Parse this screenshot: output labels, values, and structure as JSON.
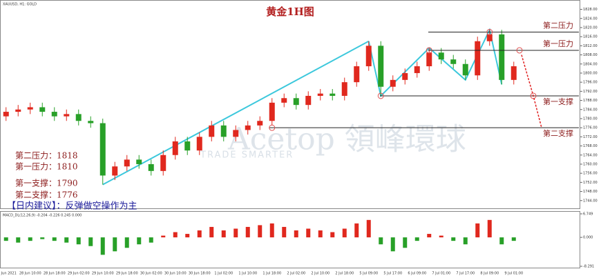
{
  "chart_data": {
    "type": "candlestick",
    "title": "黄金1H图",
    "symbol": "XAUUSD, H1: GOLD",
    "up_color": "#e0281e",
    "down_color": "#28a028",
    "categories": [
      "25 Jun 2021",
      null,
      "28 Jun 10:00",
      null,
      "28 Jun 18:00",
      null,
      "29 Jun 02:00",
      null,
      "29 Jun 10:00",
      null,
      "29 Jun 18:00",
      null,
      "30 Jun 02:00",
      null,
      "30 Jun 10:00",
      null,
      "30 Jun 18:00",
      null,
      "1 Jul 02:00",
      null,
      "1 Jul 10:00",
      null,
      "1 Jul 18:00",
      null,
      "2 Jul 02:00",
      null,
      "2 Jul 10:00",
      null,
      "2 Jul 18:00",
      null,
      "5 Jul 09:00",
      null,
      "5 Jul 17:00",
      null,
      "6 Jul 09:00",
      null,
      "7 Jul 01:00",
      null,
      "7 Jul 17:00",
      null,
      "8 Jul 09:00",
      null,
      "9 Jul 01:00"
    ],
    "open": [
      1781,
      1783,
      1784,
      1785,
      1783,
      1781,
      1782,
      1779,
      1778,
      1755,
      1759,
      1762,
      1760,
      1757,
      1764,
      1770,
      1766,
      1772,
      1777,
      1772,
      1775,
      1777,
      1779,
      1787,
      1789,
      1786,
      1790,
      1791,
      1790,
      1796,
      1803,
      1812,
      1794,
      1797,
      1800,
      1803,
      1809,
      1806,
      1804,
      1799,
      1814,
      1817,
      1797
    ],
    "high": [
      1785,
      1786,
      1787,
      1787,
      1785,
      1784,
      1784,
      1781,
      1780,
      1761,
      1764,
      1764,
      1762,
      1766,
      1772,
      1772,
      1774,
      1779,
      1779,
      1777,
      1779,
      1781,
      1789,
      1791,
      1791,
      1792,
      1793,
      1793,
      1798,
      1805,
      1814,
      1814,
      1799,
      1802,
      1805,
      1811,
      1811,
      1808,
      1806,
      1816,
      1819,
      1819,
      1805
    ],
    "low": [
      1779,
      1781,
      1782,
      1781,
      1779,
      1779,
      1777,
      1776,
      1751,
      1753,
      1757,
      1758,
      1755,
      1755,
      1762,
      1764,
      1764,
      1770,
      1770,
      1770,
      1773,
      1775,
      1777,
      1785,
      1784,
      1784,
      1788,
      1788,
      1788,
      1794,
      1801,
      1790,
      1792,
      1795,
      1798,
      1801,
      1804,
      1802,
      1797,
      1797,
      1812,
      1795,
      1795
    ],
    "close": [
      1783,
      1784,
      1785,
      1783,
      1781,
      1782,
      1779,
      1778,
      1755,
      1759,
      1762,
      1760,
      1757,
      1764,
      1770,
      1766,
      1772,
      1777,
      1772,
      1775,
      1777,
      1779,
      1787,
      1789,
      1786,
      1790,
      1791,
      1790,
      1796,
      1803,
      1812,
      1794,
      1797,
      1800,
      1803,
      1809,
      1806,
      1804,
      1799,
      1814,
      1817,
      1797,
      1803
    ],
    "ylim": [
      1741.2,
      1831.5
    ],
    "yticks": [
      {
        "value": 1744,
        "label": "1744.00"
      },
      {
        "value": 1748,
        "label": "1748.00"
      },
      {
        "value": 1752,
        "label": "1752.00"
      },
      {
        "value": 1756,
        "label": "1756.00"
      },
      {
        "value": 1760,
        "label": "1760.00"
      },
      {
        "value": 1764,
        "label": "1764.00"
      },
      {
        "value": 1768,
        "label": "1768.00"
      },
      {
        "value": 1772,
        "label": "1772.00"
      },
      {
        "value": 1776,
        "label": "1776.00"
      },
      {
        "value": 1780,
        "label": "1780.00"
      },
      {
        "value": 1784,
        "label": "1784.00"
      },
      {
        "value": 1788,
        "label": "1788.00"
      },
      {
        "value": 1792,
        "label": "1792.00"
      },
      {
        "value": 1796,
        "label": "1796.00"
      },
      {
        "value": 1800,
        "label": "1800.00"
      },
      {
        "value": 1804,
        "label": "1804.00"
      },
      {
        "value": 1808,
        "label": "1808.00"
      },
      {
        "value": 1812,
        "label": "1812.00"
      },
      {
        "value": 1816,
        "label": "1816.00"
      },
      {
        "value": 1820,
        "label": "1820.00"
      },
      {
        "value": 1824,
        "label": "1824.00"
      },
      {
        "value": 1828,
        "label": "1828.00"
      }
    ],
    "levels": [
      {
        "label": "第二压力",
        "value": 1818
      },
      {
        "label": "第一压力",
        "value": 1810
      },
      {
        "label": "第一支撑",
        "value": 1790
      },
      {
        "label": "第二支撑",
        "value": 1776
      }
    ],
    "notes": [
      "第二压力：1818",
      "第一压力：1810",
      "第一支撑：1790",
      "第二支撑：1776"
    ],
    "advice": "【日内建议】：反弹做空操作为主",
    "watermark": "Acetop 領峰環球",
    "watermark_sub": "TRADE SMARTER",
    "macd": {
      "title": "MACD_DL(12,26,9) -0.204 -0.226 0.245 0.000",
      "values": [
        -1,
        -1.5,
        -1,
        -0.5,
        -1,
        -1.5,
        -2,
        -2.5,
        -5,
        -4,
        -3,
        -2,
        -1.5,
        0.5,
        1.5,
        1,
        2,
        3,
        2,
        2.5,
        3,
        3.5,
        4,
        3,
        2,
        2.5,
        2,
        1.5,
        2.5,
        4,
        5,
        -2,
        -4,
        -3,
        -1,
        1,
        0.5,
        -1,
        -2,
        4,
        5,
        -2,
        -1
      ],
      "ylim": [
        -8.291,
        6.749
      ],
      "yticks": [
        -8.291,
        {
          "value": 0,
          "label": "0.000"
        },
        6.749
      ]
    }
  }
}
